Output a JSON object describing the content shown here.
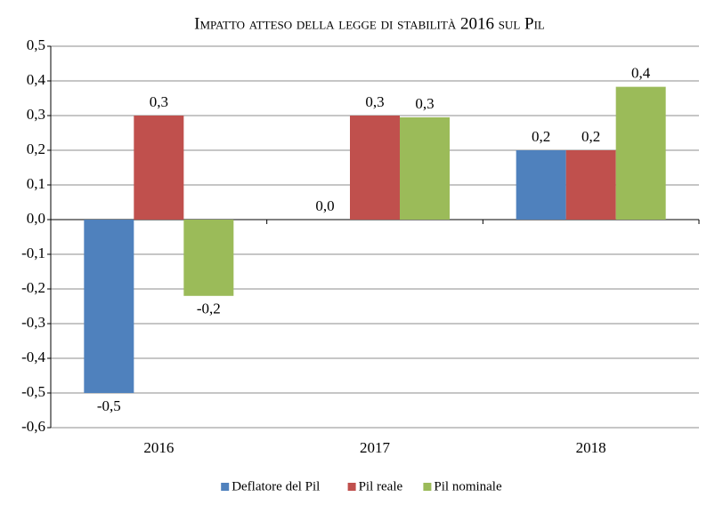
{
  "chart_data": {
    "type": "bar",
    "title": "Impatto atteso della legge di stabilità 2016 sul Pil",
    "categories": [
      "2016",
      "2017",
      "2018"
    ],
    "series": [
      {
        "name": "Deflatore del Pil",
        "color": "#4f81bd",
        "values": [
          -0.5,
          0,
          0.2
        ],
        "value_labels": [
          "-0,5",
          "0,0",
          "0,2"
        ]
      },
      {
        "name": "Pil reale",
        "color": "#c0504d",
        "values": [
          0.3,
          0.3,
          0.2
        ],
        "value_labels": [
          "0,3",
          "0,3",
          "0,2"
        ]
      },
      {
        "name": "Pil nominale",
        "color": "#9bbb59",
        "values": [
          -0.22,
          0.295,
          0.383
        ],
        "value_labels": [
          "-0,2",
          "0,3",
          "0,4"
        ]
      }
    ],
    "ylim": [
      -0.6,
      0.5
    ],
    "yticks": [
      {
        "value": -0.6,
        "label": "-0,6"
      },
      {
        "value": -0.5,
        "label": "-0,5"
      },
      {
        "value": -0.4,
        "label": "-0,4"
      },
      {
        "value": -0.3,
        "label": "-0,3"
      },
      {
        "value": -0.2,
        "label": "-0,2"
      },
      {
        "value": -0.1,
        "label": "-0,1"
      },
      {
        "value": 0,
        "label": "0,0"
      },
      {
        "value": 0.1,
        "label": "0,1"
      },
      {
        "value": 0.2,
        "label": "0,2"
      },
      {
        "value": 0.3,
        "label": "0,3"
      },
      {
        "value": 0.4,
        "label": "0,4"
      },
      {
        "value": 0.5,
        "label": "0,5"
      }
    ],
    "grid": true,
    "legend": "bottom"
  }
}
